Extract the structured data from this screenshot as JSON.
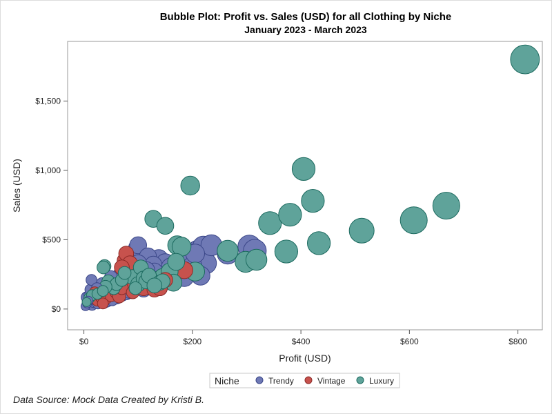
{
  "chart_data": {
    "type": "scatter",
    "title": "Bubble Plot: Profit vs. Sales (USD) for all Clothing by Niche",
    "subtitle": "January 2023 - March 2023",
    "xlabel": "Profit (USD)",
    "ylabel": "Sales (USD)",
    "xlim": [
      -30,
      845
    ],
    "ylim": [
      -150,
      1930
    ],
    "x_ticks": [
      0,
      200,
      400,
      600,
      800
    ],
    "x_tick_labels": [
      "$0",
      "$200",
      "$400",
      "$600",
      "$800"
    ],
    "y_ticks": [
      0,
      500,
      1000,
      1500
    ],
    "y_tick_labels": [
      "$0",
      "$500",
      "$1,000",
      "$1,500"
    ],
    "grid": false,
    "legend": {
      "title": "Niche",
      "placement": "bottom-center"
    },
    "footnote": "Data Source: Mock Data Created by Kristi B.",
    "colors": {
      "Trendy": "#6f79b5",
      "Vintage": "#c7524d",
      "Luxury": "#5fa39a"
    },
    "strokes": {
      "Trendy": "#3a4688",
      "Vintage": "#8c2a27",
      "Luxury": "#1c6a5f"
    },
    "series": [
      {
        "name": "Trendy",
        "points": [
          [
            3,
            20,
            1
          ],
          [
            6,
            40,
            1
          ],
          [
            8,
            60,
            1
          ],
          [
            5,
            85,
            2
          ],
          [
            10,
            100,
            2
          ],
          [
            12,
            140,
            2
          ],
          [
            14,
            210,
            2
          ],
          [
            15,
            30,
            2
          ],
          [
            18,
            50,
            2
          ],
          [
            20,
            70,
            2
          ],
          [
            22,
            110,
            2
          ],
          [
            24,
            150,
            2
          ],
          [
            26,
            40,
            2
          ],
          [
            28,
            60,
            3
          ],
          [
            30,
            90,
            3
          ],
          [
            32,
            120,
            3
          ],
          [
            34,
            180,
            3
          ],
          [
            36,
            50,
            3
          ],
          [
            38,
            80,
            3
          ],
          [
            40,
            130,
            3
          ],
          [
            42,
            60,
            3
          ],
          [
            45,
            100,
            3
          ],
          [
            48,
            150,
            3
          ],
          [
            50,
            230,
            3
          ],
          [
            52,
            70,
            3
          ],
          [
            55,
            120,
            4
          ],
          [
            58,
            170,
            4
          ],
          [
            60,
            90,
            4
          ],
          [
            62,
            140,
            4
          ],
          [
            65,
            200,
            4
          ],
          [
            68,
            250,
            4
          ],
          [
            70,
            110,
            4
          ],
          [
            72,
            160,
            4
          ],
          [
            75,
            210,
            4
          ],
          [
            78,
            120,
            4
          ],
          [
            80,
            180,
            4
          ],
          [
            82,
            230,
            4
          ],
          [
            85,
            130,
            4
          ],
          [
            88,
            200,
            4
          ],
          [
            90,
            260,
            5
          ],
          [
            92,
            150,
            5
          ],
          [
            95,
            210,
            5
          ],
          [
            98,
            440,
            5
          ],
          [
            100,
            460,
            5
          ],
          [
            105,
            170,
            5
          ],
          [
            108,
            240,
            5
          ],
          [
            112,
            300,
            5
          ],
          [
            115,
            180,
            5
          ],
          [
            118,
            380,
            5
          ],
          [
            120,
            250,
            5
          ],
          [
            125,
            200,
            5
          ],
          [
            128,
            320,
            5
          ],
          [
            130,
            270,
            5
          ],
          [
            135,
            210,
            5
          ],
          [
            138,
            360,
            6
          ],
          [
            140,
            300,
            6
          ],
          [
            145,
            230,
            6
          ],
          [
            150,
            330,
            6
          ],
          [
            155,
            250,
            6
          ],
          [
            160,
            300,
            6
          ],
          [
            165,
            270,
            6
          ],
          [
            170,
            220,
            6
          ],
          [
            175,
            320,
            6
          ],
          [
            180,
            260,
            6
          ],
          [
            185,
            230,
            6
          ],
          [
            190,
            380,
            6
          ],
          [
            195,
            400,
            6
          ],
          [
            200,
            310,
            6
          ],
          [
            205,
            400,
            6
          ],
          [
            210,
            420,
            7
          ],
          [
            215,
            240,
            6
          ],
          [
            220,
            450,
            7
          ],
          [
            225,
            330,
            7
          ],
          [
            235,
            460,
            7
          ],
          [
            265,
            400,
            7
          ],
          [
            305,
            450,
            8
          ],
          [
            315,
            420,
            8
          ],
          [
            110,
            140,
            4
          ],
          [
            140,
            150,
            4
          ],
          [
            60,
            130,
            3
          ],
          [
            40,
            100,
            3
          ],
          [
            100,
            330,
            5
          ],
          [
            115,
            280,
            5
          ]
        ]
      },
      {
        "name": "Vintage",
        "points": [
          [
            20,
            120,
            2
          ],
          [
            25,
            60,
            2
          ],
          [
            30,
            90,
            2
          ],
          [
            35,
            40,
            2
          ],
          [
            40,
            80,
            3
          ],
          [
            45,
            130,
            3
          ],
          [
            50,
            100,
            3
          ],
          [
            55,
            170,
            3
          ],
          [
            60,
            120,
            3
          ],
          [
            65,
            90,
            3
          ],
          [
            70,
            150,
            3
          ],
          [
            75,
            350,
            4
          ],
          [
            78,
            400,
            4
          ],
          [
            80,
            200,
            4
          ],
          [
            85,
            170,
            4
          ],
          [
            90,
            120,
            3
          ],
          [
            95,
            250,
            4
          ],
          [
            100,
            220,
            4
          ],
          [
            105,
            180,
            4
          ],
          [
            110,
            150,
            4
          ],
          [
            130,
            140,
            4
          ],
          [
            140,
            150,
            4
          ],
          [
            150,
            210,
            4
          ],
          [
            185,
            280,
            5
          ],
          [
            85,
            330,
            4
          ],
          [
            70,
            300,
            4
          ]
        ]
      },
      {
        "name": "Luxury",
        "points": [
          [
            5,
            50,
            1
          ],
          [
            10,
            80,
            2
          ],
          [
            15,
            100,
            2
          ],
          [
            25,
            110,
            2
          ],
          [
            35,
            130,
            2
          ],
          [
            38,
            310,
            3
          ],
          [
            45,
            200,
            3
          ],
          [
            55,
            150,
            3
          ],
          [
            60,
            180,
            3
          ],
          [
            70,
            210,
            3
          ],
          [
            75,
            260,
            3
          ],
          [
            90,
            230,
            4
          ],
          [
            100,
            180,
            4
          ],
          [
            105,
            300,
            4
          ],
          [
            110,
            220,
            4
          ],
          [
            115,
            200,
            4
          ],
          [
            120,
            240,
            4
          ],
          [
            128,
            650,
            5
          ],
          [
            140,
            190,
            4
          ],
          [
            145,
            230,
            5
          ],
          [
            150,
            600,
            5
          ],
          [
            158,
            270,
            5
          ],
          [
            165,
            190,
            5
          ],
          [
            170,
            340,
            5
          ],
          [
            172,
            460,
            6
          ],
          [
            180,
            450,
            6
          ],
          [
            196,
            890,
            6
          ],
          [
            205,
            270,
            6
          ],
          [
            265,
            420,
            7
          ],
          [
            298,
            340,
            7
          ],
          [
            318,
            355,
            7
          ],
          [
            343,
            620,
            8
          ],
          [
            380,
            680,
            8
          ],
          [
            373,
            415,
            8
          ],
          [
            405,
            1010,
            8
          ],
          [
            422,
            780,
            8
          ],
          [
            433,
            475,
            8
          ],
          [
            512,
            565,
            9
          ],
          [
            608,
            640,
            10
          ],
          [
            668,
            745,
            10
          ],
          [
            813,
            1800,
            11
          ],
          [
            145,
            200,
            4
          ],
          [
            130,
            170,
            4
          ],
          [
            95,
            150,
            3
          ],
          [
            40,
            160,
            3
          ],
          [
            36,
            300,
            3
          ]
        ]
      }
    ]
  }
}
